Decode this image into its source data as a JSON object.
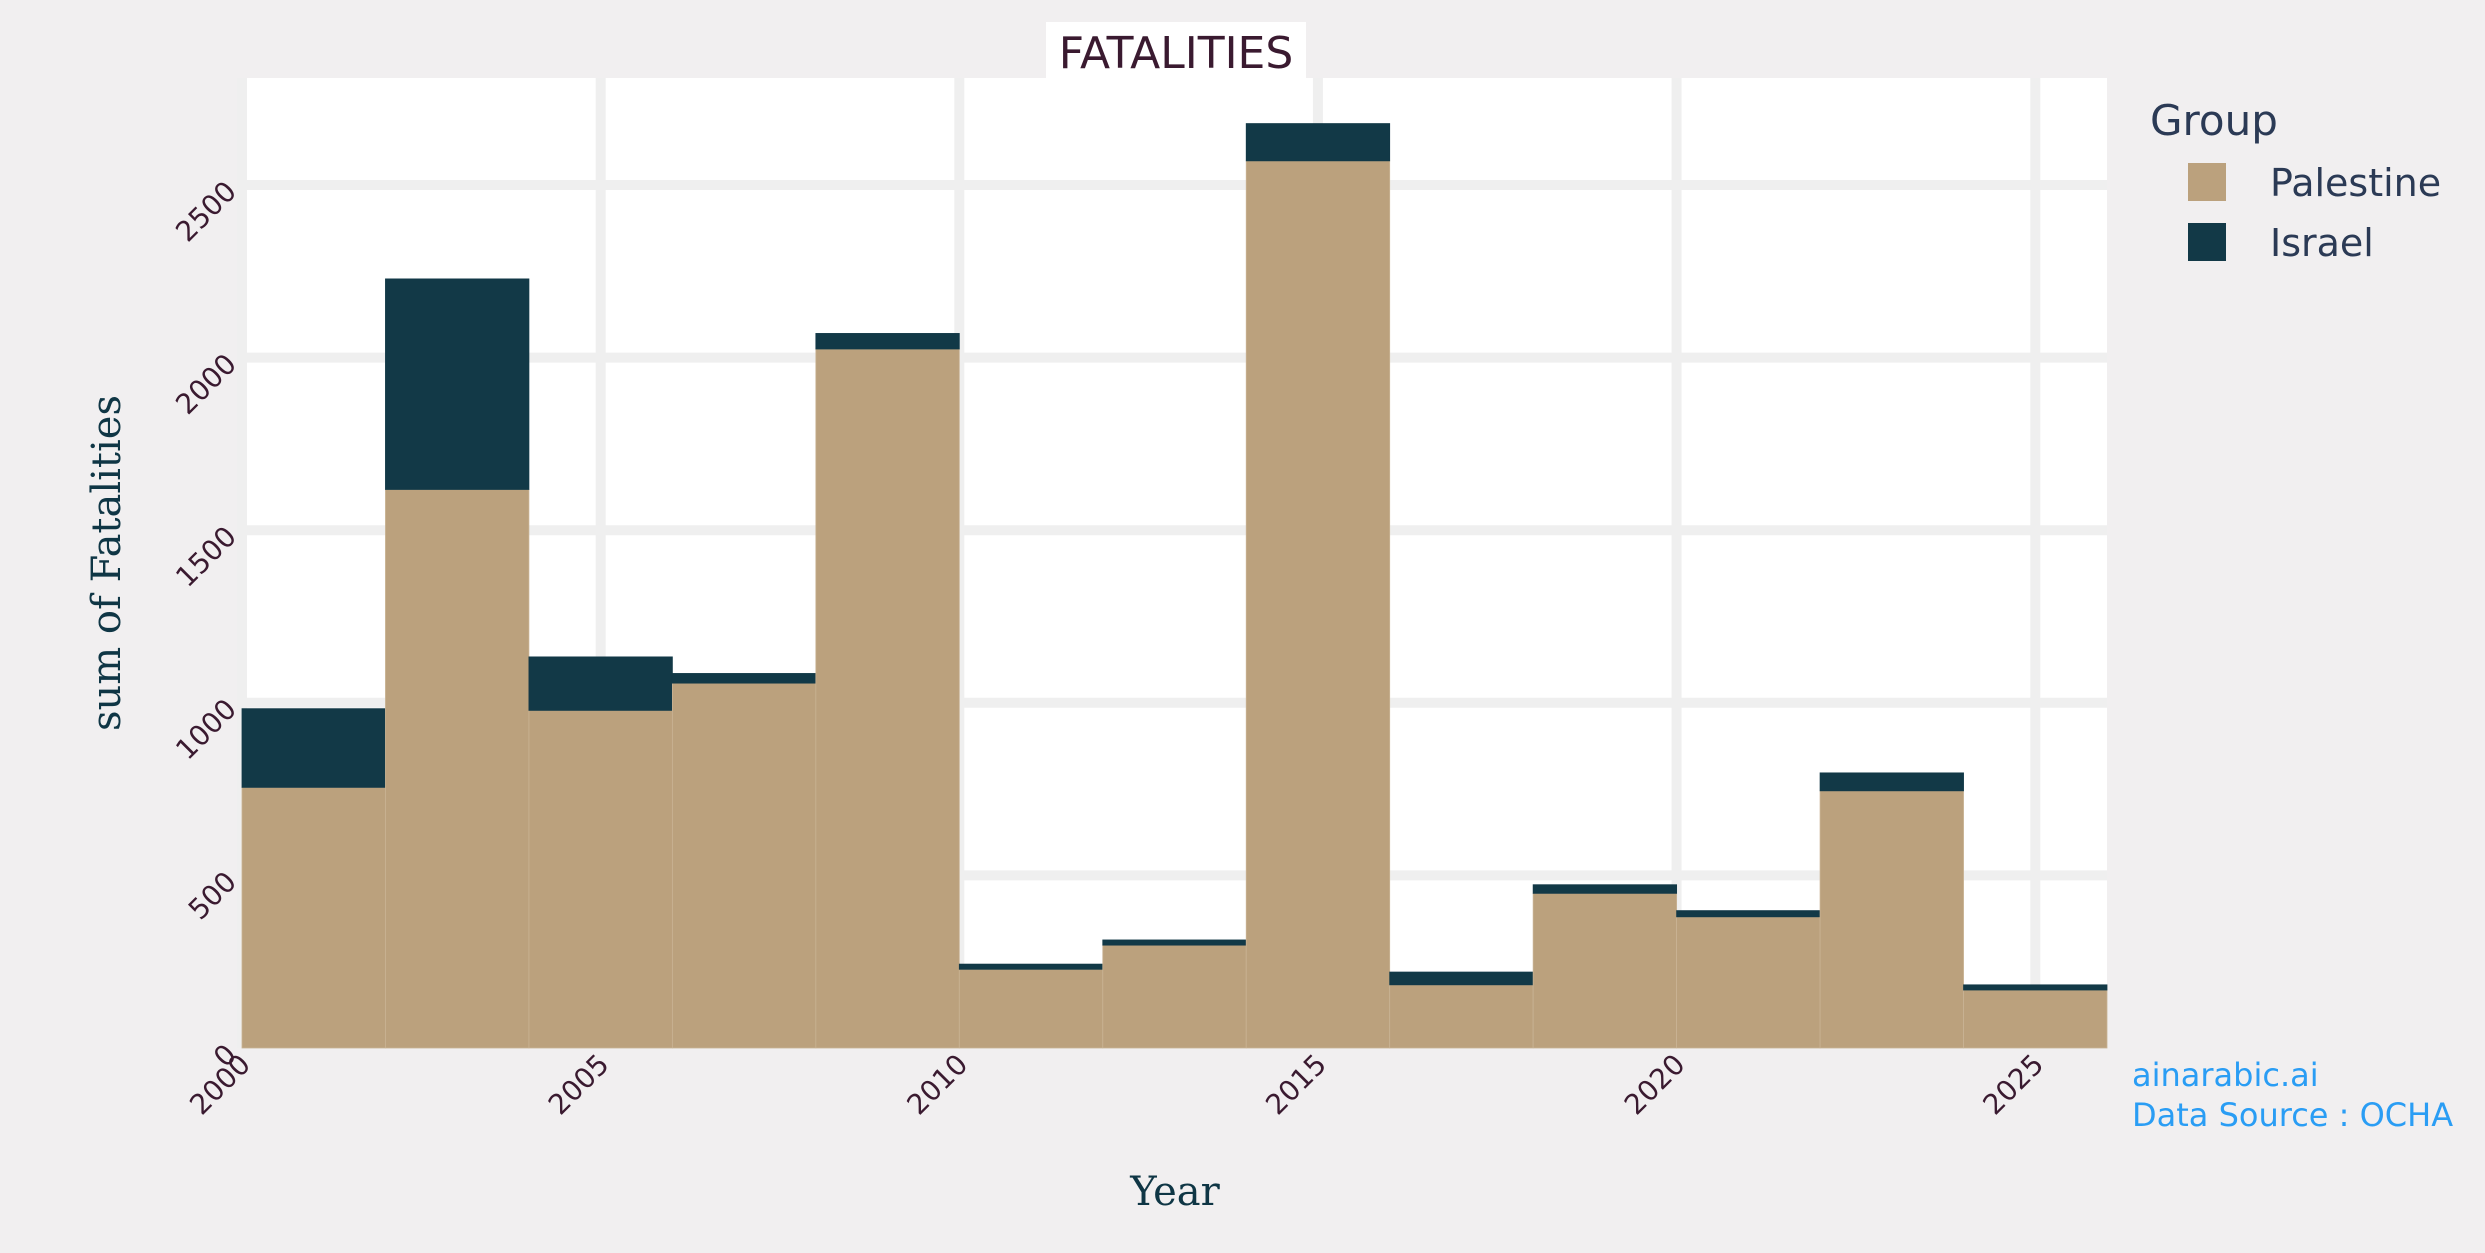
{
  "chart_data": {
    "type": "bar",
    "stacked": true,
    "title": "FATALITIES",
    "xlabel": "Year",
    "ylabel": "sum of Fatalities",
    "bin_width": 2,
    "x_bins": [
      2000,
      2002,
      2004,
      2006,
      2008,
      2010,
      2012,
      2014,
      2016,
      2018,
      2020,
      2022,
      2024
    ],
    "xlim": [
      2000,
      2026
    ],
    "ylim": [
      0,
      2810
    ],
    "x_ticks": [
      "2000",
      "2005",
      "2010",
      "2015",
      "2020",
      "2025"
    ],
    "y_ticks": [
      "0",
      "500",
      "1000",
      "1500",
      "2000",
      "2500"
    ],
    "series": [
      {
        "name": "Palestine",
        "color": "#bba17d",
        "values": [
          755,
          1618,
          978,
          1057,
          2025,
          228,
          298,
          2570,
          183,
          448,
          380,
          745,
          168
        ]
      },
      {
        "name": "Israel",
        "color": "#123947",
        "values": [
          228,
          610,
          155,
          28,
          45,
          15,
          15,
          108,
          37,
          25,
          18,
          52,
          15
        ]
      }
    ],
    "legend": {
      "title": "Group",
      "placement": "top-right"
    },
    "grid": true
  },
  "credits": {
    "site": "ainarabic.ai",
    "source": "Data Source : OCHA"
  }
}
